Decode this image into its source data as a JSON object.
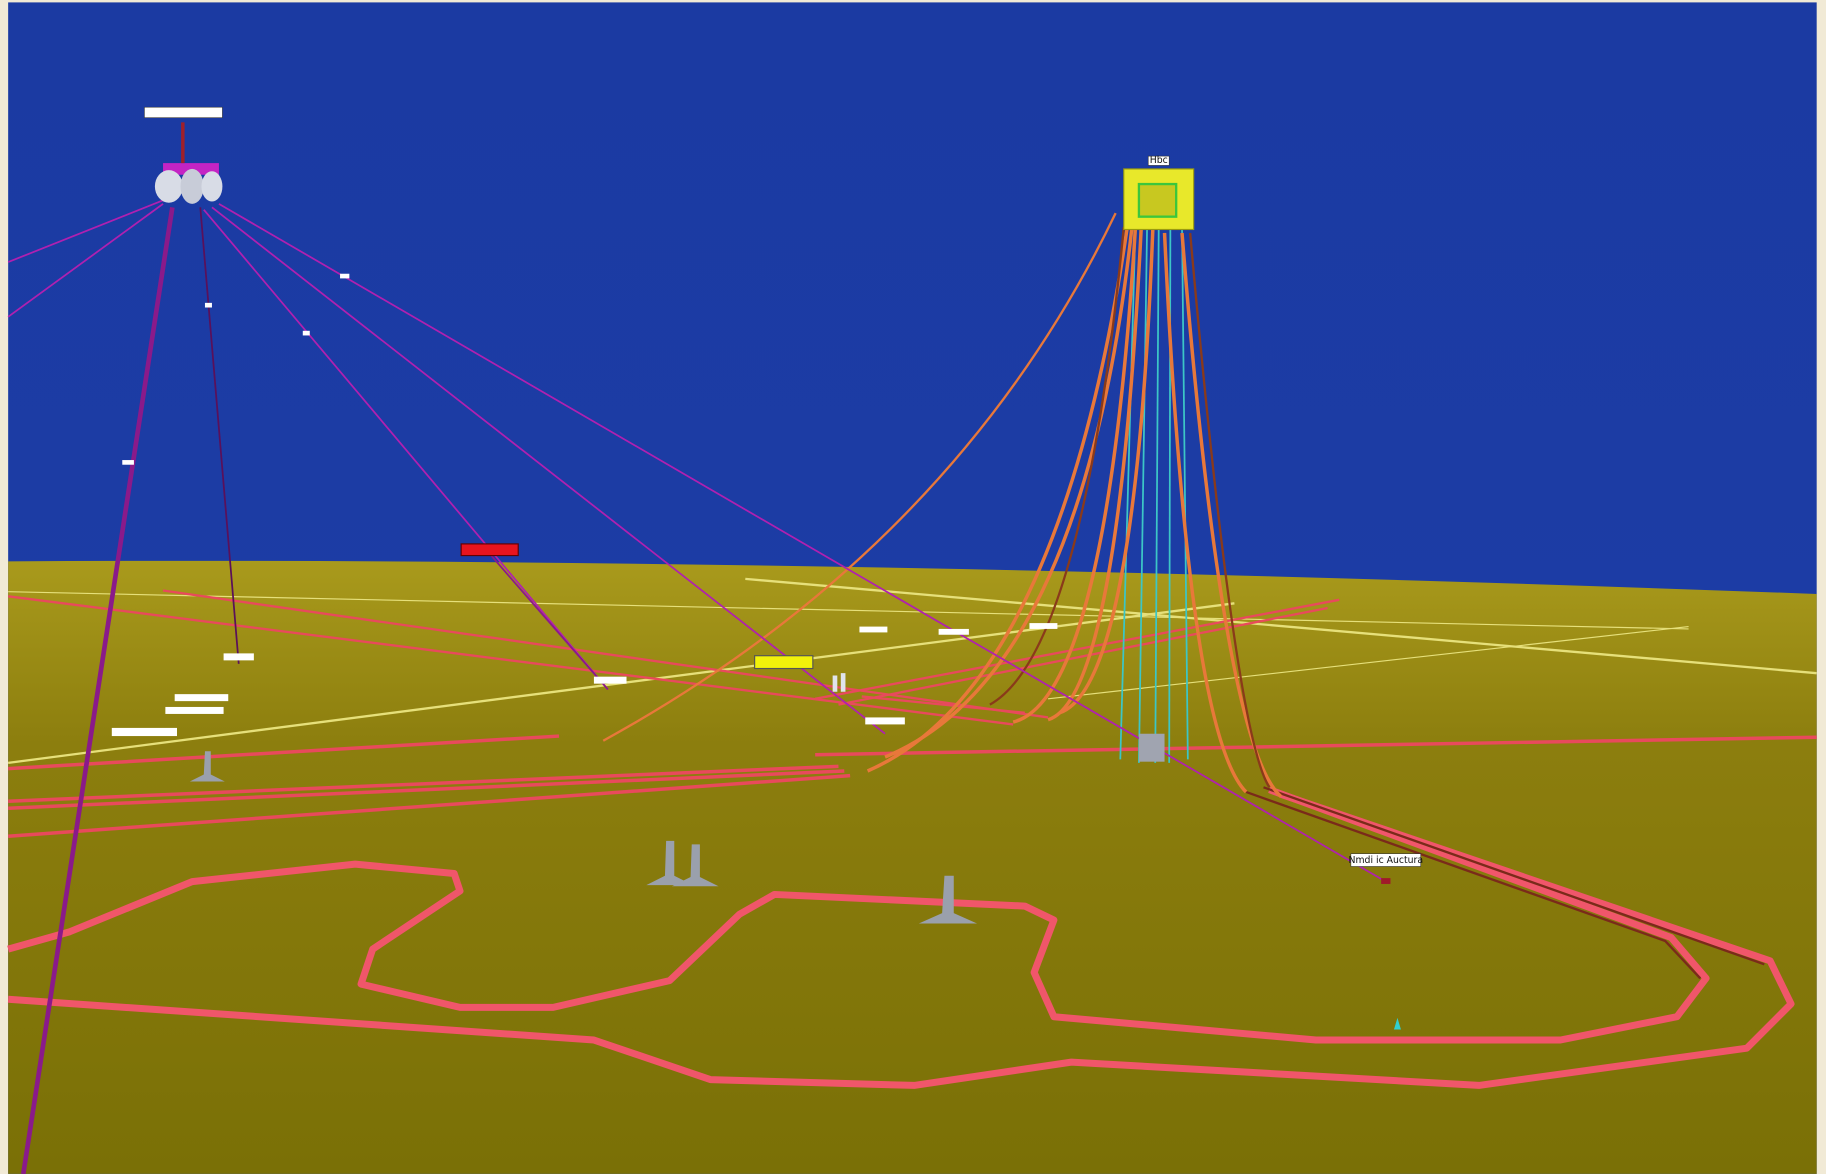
{
  "labels": {
    "platform": "Hbc",
    "manifold": "Nmdi ic Auctura"
  }
}
